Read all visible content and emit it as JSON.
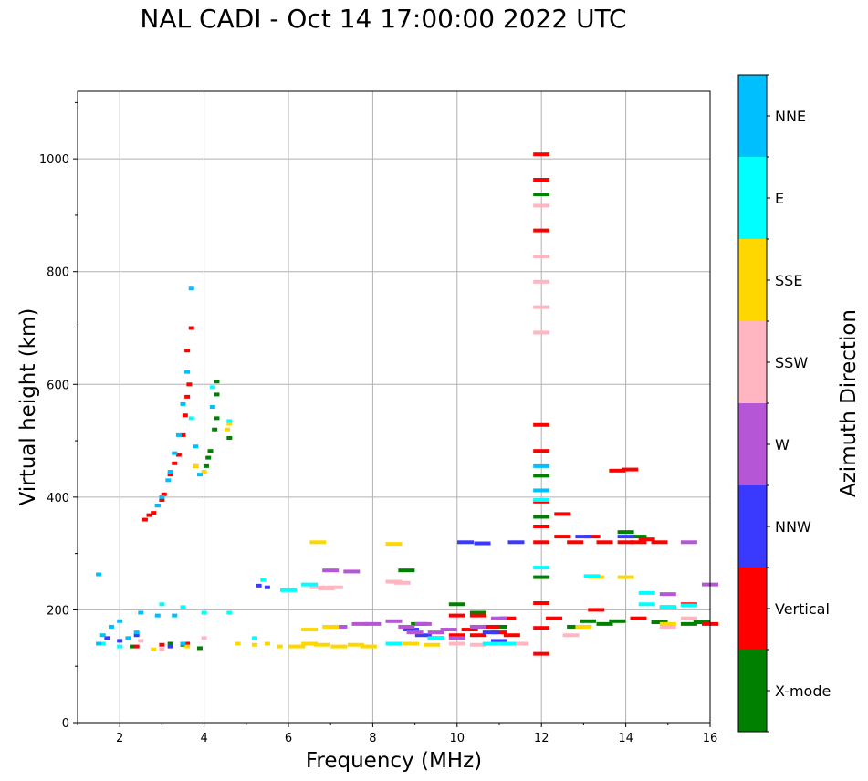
{
  "title": "NAL CADI - Oct 14 17:00:00 2022 UTC",
  "colors": {
    "X-mode": "#008000",
    "Vertical": "#ff0000",
    "NNW": "#3a3aff",
    "W": "#b556d6",
    "SSW": "#ffb6c1",
    "SSE": "#ffd700",
    "E": "#00ffff",
    "NNE": "#00bfff",
    "grid": "#b0b0b0"
  },
  "chart_data": {
    "type": "scatter",
    "title": "NAL CADI - Oct 14 17:00:00 2022 UTC",
    "xlabel": "Frequency (MHz)",
    "ylabel": "Virtual height (km)",
    "xlim": [
      1,
      16
    ],
    "ylim": [
      0,
      1120
    ],
    "xticks": [
      2,
      4,
      6,
      8,
      10,
      12,
      14,
      16
    ],
    "yticks": [
      0,
      200,
      400,
      600,
      800,
      1000
    ],
    "grid": true,
    "colorbar": {
      "label": "Azimuth Direction",
      "categories": [
        "X-mode",
        "Vertical",
        "NNW",
        "W",
        "SSW",
        "SSE",
        "E",
        "NNE"
      ]
    },
    "series": [
      {
        "name": "X-mode",
        "points": [
          [
            2.3,
            135
          ],
          [
            3.2,
            140
          ],
          [
            3.5,
            138
          ],
          [
            3.9,
            132
          ],
          [
            4.05,
            455
          ],
          [
            4.1,
            470
          ],
          [
            4.15,
            482
          ],
          [
            4.25,
            520
          ],
          [
            4.3,
            540
          ],
          [
            4.3,
            582
          ],
          [
            4.3,
            605
          ],
          [
            4.6,
            505
          ],
          [
            8.8,
            270
          ],
          [
            9.1,
            175
          ],
          [
            9.5,
            150
          ],
          [
            10.0,
            210
          ],
          [
            10.5,
            195
          ],
          [
            11.0,
            170
          ],
          [
            12.0,
            937
          ],
          [
            12.0,
            438
          ],
          [
            12.0,
            365
          ],
          [
            12.0,
            258
          ],
          [
            12.8,
            170
          ],
          [
            13.1,
            180
          ],
          [
            13.5,
            175
          ],
          [
            13.8,
            180
          ],
          [
            14.0,
            338
          ],
          [
            14.3,
            330
          ],
          [
            14.8,
            178
          ],
          [
            15.5,
            175
          ],
          [
            15.8,
            178
          ]
        ]
      },
      {
        "name": "Vertical",
        "points": [
          [
            2.6,
            360
          ],
          [
            2.7,
            368
          ],
          [
            2.8,
            372
          ],
          [
            2.9,
            385
          ],
          [
            3.0,
            395
          ],
          [
            3.05,
            405
          ],
          [
            3.2,
            440
          ],
          [
            3.3,
            460
          ],
          [
            3.4,
            475
          ],
          [
            3.5,
            510
          ],
          [
            3.55,
            545
          ],
          [
            3.6,
            578
          ],
          [
            3.65,
            600
          ],
          [
            3.6,
            660
          ],
          [
            3.7,
            700
          ],
          [
            3.8,
            455
          ],
          [
            2.4,
            135
          ],
          [
            3.0,
            138
          ],
          [
            3.6,
            140
          ],
          [
            10.0,
            155
          ],
          [
            10.3,
            165
          ],
          [
            10.5,
            155
          ],
          [
            10.8,
            170
          ],
          [
            11.0,
            160
          ],
          [
            11.3,
            155
          ],
          [
            10.0,
            190
          ],
          [
            10.5,
            190
          ],
          [
            11.2,
            185
          ],
          [
            12.0,
            1008
          ],
          [
            12.0,
            963
          ],
          [
            12.0,
            873
          ],
          [
            12.0,
            528
          ],
          [
            12.0,
            482
          ],
          [
            12.0,
            392
          ],
          [
            12.0,
            348
          ],
          [
            12.0,
            320
          ],
          [
            12.0,
            212
          ],
          [
            12.0,
            168
          ],
          [
            12.0,
            122
          ],
          [
            12.5,
            370
          ],
          [
            12.5,
            330
          ],
          [
            12.8,
            320
          ],
          [
            13.2,
            330
          ],
          [
            13.5,
            320
          ],
          [
            14.0,
            320
          ],
          [
            14.3,
            320
          ],
          [
            14.5,
            325
          ],
          [
            14.8,
            320
          ],
          [
            13.8,
            447
          ],
          [
            14.1,
            449
          ],
          [
            12.3,
            185
          ],
          [
            13.3,
            200
          ],
          [
            14.3,
            185
          ],
          [
            15.0,
            205
          ],
          [
            15.5,
            210
          ],
          [
            16.0,
            175
          ]
        ]
      },
      {
        "name": "NNW",
        "points": [
          [
            1.7,
            150
          ],
          [
            2.0,
            145
          ],
          [
            2.4,
            155
          ],
          [
            3.2,
            135
          ],
          [
            5.3,
            243
          ],
          [
            5.5,
            240
          ],
          [
            10.2,
            320
          ],
          [
            10.6,
            318
          ],
          [
            11.4,
            320
          ],
          [
            10.8,
            160
          ],
          [
            11.0,
            145
          ],
          [
            9.2,
            155
          ],
          [
            8.9,
            165
          ],
          [
            14.0,
            330
          ],
          [
            13.0,
            330
          ]
        ]
      },
      {
        "name": "W",
        "points": [
          [
            7.0,
            270
          ],
          [
            7.5,
            268
          ],
          [
            8.0,
            175
          ],
          [
            8.5,
            180
          ],
          [
            8.8,
            170
          ],
          [
            9.0,
            160
          ],
          [
            9.2,
            175
          ],
          [
            9.5,
            160
          ],
          [
            9.8,
            165
          ],
          [
            10.0,
            150
          ],
          [
            10.5,
            170
          ],
          [
            11.0,
            185
          ],
          [
            7.2,
            170
          ],
          [
            7.7,
            175
          ],
          [
            15.0,
            228
          ],
          [
            15.5,
            320
          ],
          [
            16.0,
            245
          ]
        ]
      },
      {
        "name": "SSW",
        "points": [
          [
            2.5,
            145
          ],
          [
            3.0,
            130
          ],
          [
            4.0,
            150
          ],
          [
            6.7,
            240
          ],
          [
            6.9,
            238
          ],
          [
            7.1,
            240
          ],
          [
            8.5,
            250
          ],
          [
            8.7,
            248
          ],
          [
            10.0,
            140
          ],
          [
            10.5,
            138
          ],
          [
            12.0,
            917
          ],
          [
            12.0,
            827
          ],
          [
            12.0,
            782
          ],
          [
            12.0,
            737
          ],
          [
            12.0,
            692
          ],
          [
            12.7,
            155
          ],
          [
            15.0,
            170
          ],
          [
            15.5,
            185
          ],
          [
            8.9,
            140
          ],
          [
            11.5,
            140
          ]
        ]
      },
      {
        "name": "SSE",
        "points": [
          [
            4.6,
            530
          ],
          [
            4.55,
            520
          ],
          [
            4.0,
            445
          ],
          [
            3.8,
            455
          ],
          [
            2.8,
            130
          ],
          [
            3.6,
            135
          ],
          [
            4.8,
            140
          ],
          [
            5.2,
            138
          ],
          [
            5.5,
            140
          ],
          [
            5.8,
            135
          ],
          [
            6.2,
            135
          ],
          [
            6.5,
            140
          ],
          [
            6.8,
            138
          ],
          [
            7.2,
            135
          ],
          [
            7.6,
            138
          ],
          [
            7.9,
            135
          ],
          [
            6.7,
            320
          ],
          [
            8.5,
            317
          ],
          [
            8.9,
            140
          ],
          [
            9.4,
            138
          ],
          [
            6.5,
            165
          ],
          [
            7.0,
            170
          ],
          [
            13.3,
            258
          ],
          [
            14.0,
            258
          ],
          [
            15.0,
            175
          ],
          [
            13.0,
            170
          ]
        ]
      },
      {
        "name": "E",
        "points": [
          [
            1.6,
            140
          ],
          [
            2.0,
            135
          ],
          [
            3.0,
            210
          ],
          [
            3.5,
            205
          ],
          [
            4.0,
            195
          ],
          [
            4.6,
            195
          ],
          [
            5.2,
            150
          ],
          [
            5.4,
            253
          ],
          [
            6.0,
            235
          ],
          [
            6.5,
            245
          ],
          [
            12.0,
            275
          ],
          [
            12.0,
            395
          ],
          [
            8.5,
            140
          ],
          [
            9.5,
            150
          ],
          [
            10.8,
            140
          ],
          [
            11.2,
            140
          ],
          [
            13.2,
            260
          ],
          [
            14.5,
            210
          ],
          [
            15.0,
            205
          ],
          [
            15.5,
            208
          ],
          [
            14.5,
            230
          ],
          [
            4.2,
            595
          ],
          [
            4.6,
            535
          ],
          [
            3.7,
            540
          ]
        ]
      },
      {
        "name": "NNE",
        "points": [
          [
            1.5,
            140
          ],
          [
            1.6,
            155
          ],
          [
            1.8,
            170
          ],
          [
            2.0,
            180
          ],
          [
            2.2,
            150
          ],
          [
            2.4,
            160
          ],
          [
            2.5,
            195
          ],
          [
            2.9,
            190
          ],
          [
            3.3,
            190
          ],
          [
            3.5,
            140
          ],
          [
            3.7,
            770
          ],
          [
            3.6,
            622
          ],
          [
            3.5,
            565
          ],
          [
            3.4,
            510
          ],
          [
            3.3,
            478
          ],
          [
            3.2,
            445
          ],
          [
            3.15,
            430
          ],
          [
            3.8,
            490
          ],
          [
            3.9,
            440
          ],
          [
            12.0,
            455
          ],
          [
            12.0,
            412
          ],
          [
            4.2,
            560
          ],
          [
            3.0,
            400
          ],
          [
            2.9,
            385
          ],
          [
            1.5,
            263
          ]
        ]
      }
    ]
  }
}
